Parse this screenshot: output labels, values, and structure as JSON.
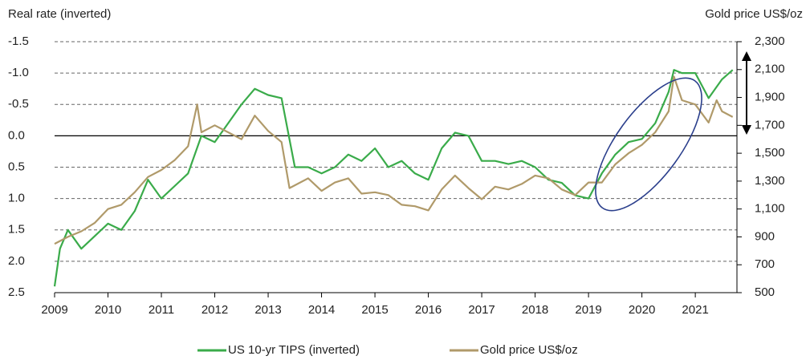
{
  "chart_data": {
    "type": "line",
    "y_label": "Real rate (inverted)",
    "y2_label": "Gold price US$/oz",
    "xlim": [
      2009,
      2021.78
    ],
    "xticks": [
      2009,
      2010,
      2011,
      2012,
      2013,
      2014,
      2015,
      2016,
      2017,
      2018,
      2019,
      2020,
      2021
    ],
    "ylim": [
      -1.5,
      2.5
    ],
    "y_inverted": true,
    "yticks": [
      -1.5,
      {
        "value": -1,
        "label": "-1.0"
      },
      -0.5,
      {
        "value": 0,
        "label": "0.0"
      },
      0.5,
      {
        "value": 1,
        "label": "1.0"
      },
      1.5,
      {
        "value": 2,
        "label": "2.0"
      },
      2.5
    ],
    "y2lim": [
      500,
      2300
    ],
    "y2ticks": [
      {
        "value": 2300,
        "label": "2,300"
      },
      {
        "value": 2100,
        "label": "2,100"
      },
      {
        "value": 1900,
        "label": "1,900"
      },
      {
        "value": 1700,
        "label": "1,700"
      },
      {
        "value": 1500,
        "label": "1,500"
      },
      {
        "value": 1300,
        "label": "1,300"
      },
      {
        "value": 1100,
        "label": "1,100"
      },
      900,
      700,
      500
    ],
    "grid": true,
    "legend": "bottom",
    "series": [
      {
        "name": "US 10-yr TIPS (inverted)",
        "color": "#3aab4a",
        "x": [
          2009.0,
          2009.1,
          2009.25,
          2009.5,
          2009.75,
          2010.0,
          2010.25,
          2010.5,
          2010.75,
          2011.0,
          2011.25,
          2011.5,
          2011.75,
          2012.0,
          2012.25,
          2012.5,
          2012.75,
          2013.0,
          2013.25,
          2013.5,
          2013.75,
          2014.0,
          2014.25,
          2014.5,
          2014.75,
          2015.0,
          2015.25,
          2015.5,
          2015.75,
          2016.0,
          2016.25,
          2016.5,
          2016.75,
          2017.0,
          2017.25,
          2017.5,
          2017.75,
          2018.0,
          2018.25,
          2018.5,
          2018.75,
          2019.0,
          2019.25,
          2019.5,
          2019.75,
          2020.0,
          2020.25,
          2020.5,
          2020.6,
          2020.75,
          2021.0,
          2021.25,
          2021.5,
          2021.7
        ],
        "values": [
          2.4,
          1.8,
          1.5,
          1.8,
          1.6,
          1.4,
          1.5,
          1.2,
          0.7,
          1.0,
          0.8,
          0.6,
          0.0,
          0.1,
          -0.2,
          -0.5,
          -0.75,
          -0.65,
          -0.6,
          0.5,
          0.5,
          0.6,
          0.5,
          0.3,
          0.4,
          0.2,
          0.5,
          0.4,
          0.6,
          0.7,
          0.2,
          -0.05,
          0.0,
          0.4,
          0.4,
          0.45,
          0.4,
          0.5,
          0.7,
          0.75,
          0.95,
          1.0,
          0.6,
          0.3,
          0.1,
          0.05,
          -0.2,
          -0.7,
          -1.05,
          -1.0,
          -1.0,
          -0.6,
          -0.9,
          -1.05
        ]
      },
      {
        "name": "Gold price US$/oz",
        "color": "#b09a6a",
        "axis": "y2",
        "x": [
          2009.0,
          2009.25,
          2009.5,
          2009.75,
          2010.0,
          2010.25,
          2010.5,
          2010.75,
          2011.0,
          2011.25,
          2011.5,
          2011.67,
          2011.75,
          2012.0,
          2012.25,
          2012.5,
          2012.75,
          2013.0,
          2013.25,
          2013.4,
          2013.75,
          2014.0,
          2014.25,
          2014.5,
          2014.75,
          2015.0,
          2015.25,
          2015.5,
          2015.75,
          2016.0,
          2016.25,
          2016.5,
          2016.75,
          2017.0,
          2017.25,
          2017.5,
          2017.75,
          2018.0,
          2018.25,
          2018.5,
          2018.75,
          2019.0,
          2019.25,
          2019.5,
          2019.75,
          2020.0,
          2020.25,
          2020.5,
          2020.6,
          2020.75,
          2021.0,
          2021.25,
          2021.4,
          2021.5,
          2021.7
        ],
        "values": [
          850,
          900,
          940,
          1000,
          1100,
          1130,
          1220,
          1330,
          1380,
          1450,
          1550,
          1850,
          1650,
          1700,
          1650,
          1600,
          1770,
          1660,
          1580,
          1250,
          1320,
          1230,
          1290,
          1320,
          1210,
          1220,
          1200,
          1130,
          1120,
          1090,
          1240,
          1340,
          1250,
          1170,
          1260,
          1240,
          1280,
          1340,
          1320,
          1240,
          1200,
          1290,
          1290,
          1420,
          1500,
          1560,
          1650,
          1800,
          2050,
          1880,
          1850,
          1720,
          1880,
          1800,
          1760
        ]
      }
    ]
  }
}
